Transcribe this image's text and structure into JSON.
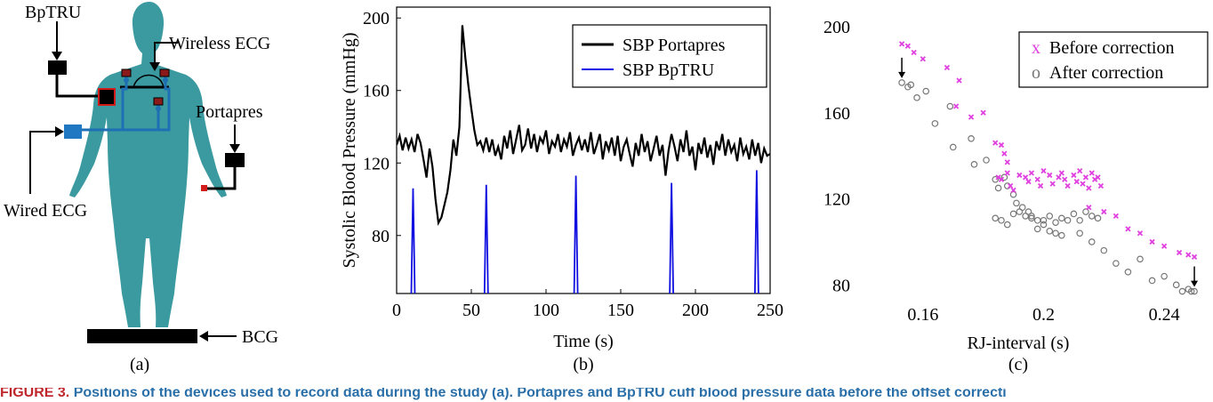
{
  "panel_a": {
    "label": "(a)",
    "labels": {
      "bptru": "BpTRU",
      "wireless_ecg": "Wireless ECG",
      "portapres": "Portapres",
      "wired_ecg": "Wired ECG",
      "bcg": "BCG"
    },
    "colors": {
      "body": "#3a9aa0",
      "wire": "#1f6fb4",
      "device": "#000000",
      "electrode": "#b22222",
      "wired_box": "#1f78c1"
    }
  },
  "caption": {
    "prefix": "FIGURE 3.",
    "text": "Positions of the devices used to record data during the study (a). Portapres and BpTRU cuff blood pressure data before the offset correcti"
  },
  "chart_data": [
    {
      "panel": "b",
      "label": "(b)",
      "type": "line",
      "xlabel": "Time (s)",
      "ylabel": "Systolic Blood Pressure (mmHg)",
      "xlim": [
        0,
        250
      ],
      "ylim": [
        48,
        206
      ],
      "xticks": [
        0,
        50,
        100,
        150,
        200,
        250
      ],
      "yticks": [
        80,
        120,
        160,
        200
      ],
      "legend_position": "top-right",
      "series": [
        {
          "name": "SBP Portapres",
          "color": "#000000",
          "x": [
            0,
            2,
            4,
            6,
            8,
            10,
            12,
            14,
            16,
            18,
            20,
            22,
            24,
            26,
            28,
            30,
            32,
            34,
            36,
            38,
            40,
            42,
            44,
            46,
            48,
            50,
            52,
            54,
            56,
            58,
            60,
            62,
            64,
            66,
            68,
            70,
            72,
            74,
            76,
            78,
            80,
            82,
            84,
            86,
            88,
            90,
            92,
            94,
            96,
            98,
            100,
            102,
            104,
            106,
            108,
            110,
            112,
            114,
            116,
            118,
            120,
            122,
            124,
            126,
            128,
            130,
            132,
            134,
            136,
            138,
            140,
            142,
            144,
            146,
            148,
            150,
            152,
            154,
            156,
            158,
            160,
            162,
            164,
            166,
            168,
            170,
            172,
            174,
            176,
            178,
            180,
            182,
            184,
            186,
            188,
            190,
            192,
            194,
            196,
            198,
            200,
            202,
            204,
            206,
            208,
            210,
            212,
            214,
            216,
            218,
            220,
            222,
            224,
            226,
            228,
            230,
            232,
            234,
            236,
            238,
            240,
            242,
            244,
            246,
            248,
            250
          ],
          "y": [
            130,
            135,
            127,
            134,
            128,
            133,
            126,
            136,
            131,
            122,
            112,
            128,
            118,
            100,
            87,
            90,
            97,
            104,
            116,
            133,
            124,
            140,
            196,
            178,
            163,
            150,
            138,
            130,
            132,
            127,
            134,
            126,
            133,
            124,
            129,
            122,
            135,
            128,
            138,
            125,
            133,
            141,
            127,
            130,
            139,
            128,
            136,
            126,
            134,
            131,
            138,
            125,
            132,
            129,
            136,
            126,
            133,
            129,
            137,
            124,
            130,
            134,
            127,
            133,
            126,
            137,
            125,
            130,
            136,
            122,
            132,
            127,
            134,
            124,
            135,
            121,
            129,
            133,
            125,
            118,
            131,
            124,
            136,
            126,
            132,
            121,
            128,
            135,
            124,
            130,
            113,
            127,
            136,
            129,
            121,
            133,
            126,
            138,
            124,
            129,
            116,
            131,
            125,
            134,
            123,
            130,
            119,
            132,
            127,
            136,
            124,
            133,
            126,
            130,
            121,
            134,
            125,
            129,
            122,
            133,
            124,
            131,
            120,
            128,
            124,
            125
          ]
        },
        {
          "name": "SBP BpTRU",
          "color": "#1010e0",
          "spikes": [
            {
              "x": 11,
              "y": 106
            },
            {
              "x": 60,
              "y": 108
            },
            {
              "x": 120,
              "y": 113
            },
            {
              "x": 184,
              "y": 109
            },
            {
              "x": 241,
              "y": 116
            }
          ]
        }
      ]
    },
    {
      "panel": "c",
      "label": "(c)",
      "type": "scatter",
      "xlabel": "RJ-interval (s)",
      "ylabel": "",
      "xlim": [
        0.14,
        0.255
      ],
      "ylim": [
        76,
        200
      ],
      "xticks": [
        "0.16",
        "0.2",
        "0.24"
      ],
      "yticks": [
        80,
        120,
        160,
        200
      ],
      "legend_position": "top-right",
      "series": [
        {
          "name": "Before correction",
          "marker": "x",
          "color": "#e040e0",
          "points": [
            [
              0.153,
              192
            ],
            [
              0.155,
              191
            ],
            [
              0.157,
              188
            ],
            [
              0.16,
              185
            ],
            [
              0.168,
              181
            ],
            [
              0.172,
              175
            ],
            [
              0.171,
              163
            ],
            [
              0.176,
              158
            ],
            [
              0.18,
              160
            ],
            [
              0.184,
              146
            ],
            [
              0.186,
              145
            ],
            [
              0.187,
              141
            ],
            [
              0.188,
              137
            ],
            [
              0.185,
              130
            ],
            [
              0.186,
              129
            ],
            [
              0.189,
              126
            ],
            [
              0.19,
              124
            ],
            [
              0.188,
              132
            ],
            [
              0.192,
              131
            ],
            [
              0.194,
              130
            ],
            [
              0.195,
              128
            ],
            [
              0.196,
              132
            ],
            [
              0.198,
              129
            ],
            [
              0.199,
              126
            ],
            [
              0.2,
              133
            ],
            [
              0.202,
              131
            ],
            [
              0.203,
              127
            ],
            [
              0.205,
              130
            ],
            [
              0.206,
              132
            ],
            [
              0.207,
              129
            ],
            [
              0.208,
              126
            ],
            [
              0.21,
              131
            ],
            [
              0.211,
              128
            ],
            [
              0.212,
              133
            ],
            [
              0.213,
              127
            ],
            [
              0.214,
              130
            ],
            [
              0.215,
              125
            ],
            [
              0.216,
              132
            ],
            [
              0.217,
              129
            ],
            [
              0.218,
              130
            ],
            [
              0.219,
              126
            ],
            [
              0.215,
              116
            ],
            [
              0.22,
              114
            ],
            [
              0.224,
              112
            ],
            [
              0.228,
              106
            ],
            [
              0.232,
              104
            ],
            [
              0.236,
              100
            ],
            [
              0.24,
              98
            ],
            [
              0.245,
              95
            ],
            [
              0.248,
              94
            ],
            [
              0.25,
              93
            ]
          ]
        },
        {
          "name": "After correction",
          "marker": "o",
          "color": "#777777",
          "points": [
            [
              0.153,
              174
            ],
            [
              0.155,
              172
            ],
            [
              0.156,
              173
            ],
            [
              0.158,
              167
            ],
            [
              0.161,
              170
            ],
            [
              0.164,
              155
            ],
            [
              0.169,
              163
            ],
            [
              0.17,
              144
            ],
            [
              0.176,
              148
            ],
            [
              0.177,
              136
            ],
            [
              0.181,
              138
            ],
            [
              0.184,
              129
            ],
            [
              0.185,
              125
            ],
            [
              0.187,
              130
            ],
            [
              0.188,
              126
            ],
            [
              0.19,
              122
            ],
            [
              0.191,
              118
            ],
            [
              0.193,
              116
            ],
            [
              0.195,
              114
            ],
            [
              0.196,
              112
            ],
            [
              0.198,
              110
            ],
            [
              0.2,
              108
            ],
            [
              0.202,
              105
            ],
            [
              0.204,
              104
            ],
            [
              0.206,
              103
            ],
            [
              0.184,
              111
            ],
            [
              0.186,
              110
            ],
            [
              0.188,
              108
            ],
            [
              0.19,
              113
            ],
            [
              0.192,
              114
            ],
            [
              0.194,
              112
            ],
            [
              0.196,
              111
            ],
            [
              0.198,
              106
            ],
            [
              0.2,
              110
            ],
            [
              0.202,
              112
            ],
            [
              0.204,
              109
            ],
            [
              0.206,
              111
            ],
            [
              0.208,
              110
            ],
            [
              0.21,
              113
            ],
            [
              0.212,
              110
            ],
            [
              0.214,
              114
            ],
            [
              0.216,
              112
            ],
            [
              0.218,
              111
            ],
            [
              0.212,
              104
            ],
            [
              0.216,
              100
            ],
            [
              0.22,
              96
            ],
            [
              0.224,
              90
            ],
            [
              0.228,
              86
            ],
            [
              0.232,
              92
            ],
            [
              0.236,
              82
            ],
            [
              0.24,
              84
            ],
            [
              0.244,
              80
            ],
            [
              0.246,
              77
            ],
            [
              0.248,
              78
            ],
            [
              0.249,
              77
            ],
            [
              0.25,
              77
            ]
          ]
        }
      ]
    }
  ]
}
